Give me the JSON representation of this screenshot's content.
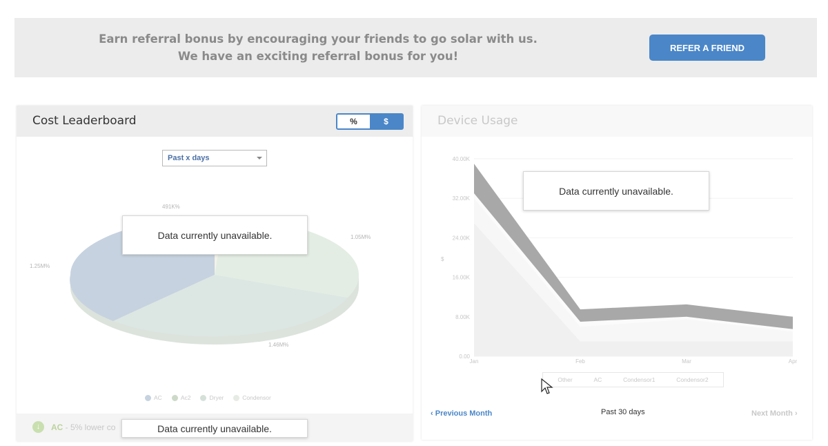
{
  "banner": {
    "line1": "Earn referral bonus by encouraging your friends to go solar with us.",
    "line2": "We have an exciting referral bonus for you!",
    "button_label": "REFER A FRIEND"
  },
  "cost_leaderboard": {
    "title": "Cost Leaderboard",
    "toggle": {
      "percent_label": "%",
      "dollar_label": "$",
      "selected": "%"
    },
    "range_select": {
      "value": "Past x days"
    },
    "slice_labels": [
      "491K%",
      "1.05M%",
      "1.25M%",
      "1.46M%"
    ],
    "legend": [
      "AC",
      "Ac2",
      "Dryer",
      "Condensor"
    ],
    "overlay_message": "Data currently unavailable.",
    "footer": {
      "highlight": "AC",
      "text": " - 5% lower co"
    },
    "footer_overlay_message": "Data currently unavailable."
  },
  "device_usage": {
    "title": "Device Usage",
    "overlay_message": "Data currently unavailable.",
    "y_axis_label": "$",
    "y_ticks": [
      "40.00K",
      "32.00K",
      "24.00K",
      "16.00K",
      "8.00K",
      "0.00"
    ],
    "x_ticks": [
      "Jan",
      "Feb",
      "Mar",
      "Apr"
    ],
    "legend": [
      "Other",
      "AC",
      "Condensor1",
      "Condensor2"
    ],
    "nav": {
      "prev": "Previous Month",
      "center": "Past 30 days",
      "next": "Next Month"
    }
  },
  "chart_data": {
    "type": "area",
    "title": "Device Usage",
    "xlabel": "",
    "ylabel": "$",
    "x": [
      "Jan",
      "Feb",
      "Mar",
      "Apr"
    ],
    "ylim": [
      0,
      40000
    ],
    "series": [
      {
        "name": "Other",
        "values": [
          27000,
          3000,
          3000,
          3000
        ]
      },
      {
        "name": "AC",
        "values": [
          5000,
          3000,
          4500,
          2000
        ]
      },
      {
        "name": "Condensor1",
        "values": [
          1000,
          1000,
          500,
          500
        ]
      },
      {
        "name": "Condensor2",
        "values": [
          6000,
          2500,
          2500,
          2500
        ]
      }
    ],
    "colors": [
      "#f0f0f0",
      "#f7f7f7",
      "#fbfbfb",
      "#a8a8a8"
    ],
    "grid": true,
    "legend": "bottom"
  }
}
